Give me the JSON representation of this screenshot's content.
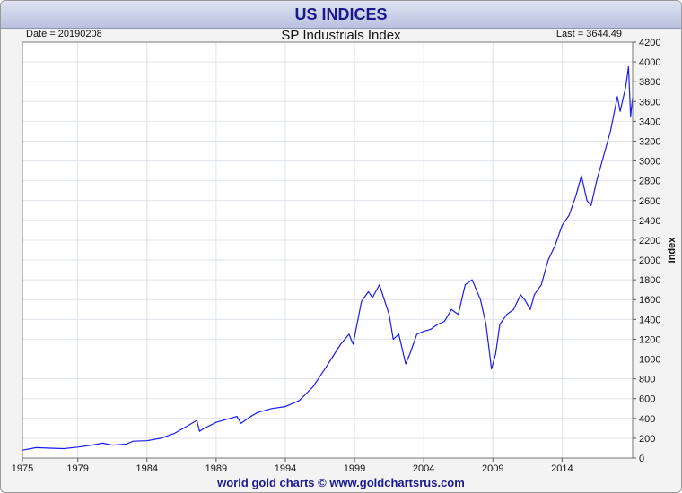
{
  "header": {
    "title": "US INDICES"
  },
  "meta": {
    "date_label": "Date = 20190208",
    "last_label": "Last = 3644.49"
  },
  "footer": {
    "credit": "world gold charts © www.goldchartsrus.com"
  },
  "colors": {
    "line": "#1a1aee",
    "title": "#1a1a8f",
    "grid": "#dde3ea"
  },
  "chart_data": {
    "type": "line",
    "title": "SP Industrials Index",
    "xlabel": "",
    "ylabel": "Index",
    "xlim": [
      1975,
      2019.1
    ],
    "ylim": [
      0,
      4200
    ],
    "x_ticks": [
      1975,
      1979,
      1984,
      1989,
      1994,
      1999,
      2004,
      2009,
      2014
    ],
    "y_ticks": [
      0,
      200,
      400,
      600,
      800,
      1000,
      1200,
      1400,
      1600,
      1800,
      2000,
      2200,
      2400,
      2600,
      2800,
      3000,
      3200,
      3400,
      3600,
      3800,
      4000,
      4200
    ],
    "grid": true,
    "series": [
      {
        "x": [
          1975.0,
          1976.0,
          1977.0,
          1978.0,
          1979.0,
          1980.0,
          1980.8,
          1981.5,
          1982.5,
          1983.0,
          1984.0,
          1985.0,
          1986.0,
          1987.0,
          1987.6,
          1987.8,
          1988.0,
          1989.0,
          1990.0,
          1990.5,
          1990.8,
          1991.5,
          1992.0,
          1993.0,
          1994.0,
          1995.0,
          1996.0,
          1997.0,
          1998.0,
          1998.6,
          1998.9,
          1999.5,
          2000.0,
          2000.3,
          2000.8,
          2001.5,
          2001.8,
          2002.2,
          2002.7,
          2003.0,
          2003.5,
          2004.0,
          2004.5,
          2005.0,
          2005.5,
          2006.0,
          2006.5,
          2007.0,
          2007.5,
          2007.8,
          2008.1,
          2008.5,
          2008.9,
          2009.2,
          2009.5,
          2010.0,
          2010.5,
          2011.0,
          2011.3,
          2011.7,
          2012.0,
          2012.5,
          2013.0,
          2013.5,
          2014.0,
          2014.5,
          2015.0,
          2015.4,
          2015.8,
          2016.1,
          2016.5,
          2017.0,
          2017.5,
          2018.0,
          2018.2,
          2018.6,
          2018.8,
          2018.95,
          2019.1
        ],
        "values": [
          80,
          105,
          100,
          95,
          110,
          130,
          150,
          130,
          140,
          170,
          175,
          200,
          250,
          330,
          380,
          270,
          290,
          360,
          400,
          420,
          350,
          420,
          460,
          500,
          520,
          580,
          720,
          930,
          1150,
          1250,
          1150,
          1580,
          1680,
          1620,
          1750,
          1450,
          1200,
          1250,
          950,
          1050,
          1250,
          1280,
          1300,
          1350,
          1380,
          1500,
          1450,
          1750,
          1800,
          1700,
          1600,
          1350,
          900,
          1050,
          1350,
          1450,
          1500,
          1650,
          1600,
          1500,
          1650,
          1750,
          2000,
          2150,
          2350,
          2450,
          2650,
          2850,
          2600,
          2550,
          2800,
          3050,
          3300,
          3650,
          3500,
          3750,
          3950,
          3450,
          3644
        ]
      }
    ]
  }
}
